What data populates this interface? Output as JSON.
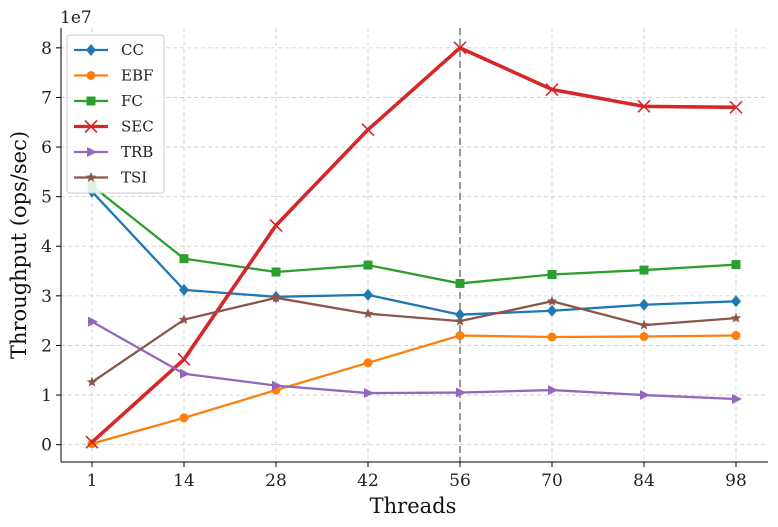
{
  "chart_data": {
    "type": "line",
    "xlabel": "Threads",
    "ylabel": "Throughput (ops/sec)",
    "y_scale_label": "1e7",
    "x": [
      1,
      14,
      28,
      42,
      56,
      70,
      84,
      98
    ],
    "x_tick_labels": [
      "1",
      "14",
      "28",
      "42",
      "56",
      "70",
      "84",
      "98"
    ],
    "y_ticks": [
      0,
      1,
      2,
      3,
      4,
      5,
      6,
      7,
      8
    ],
    "y_tick_labels": [
      "0",
      "1",
      "2",
      "3",
      "4",
      "5",
      "6",
      "7",
      "8"
    ],
    "ylim": [
      -0.35,
      8.4
    ],
    "grid": true,
    "vertical_marker_x": 56,
    "legend_position": "top-left",
    "series": [
      {
        "name": "CC",
        "color": "#1f77b4",
        "marker": "diamond",
        "values": [
          5.1,
          3.12,
          2.98,
          3.02,
          2.62,
          2.7,
          2.82,
          2.89
        ]
      },
      {
        "name": "EBF",
        "color": "#ff7f0e",
        "marker": "circle",
        "values": [
          0.02,
          0.54,
          1.1,
          1.65,
          2.2,
          2.17,
          2.18,
          2.2
        ]
      },
      {
        "name": "FC",
        "color": "#2ca02c",
        "marker": "square",
        "values": [
          5.22,
          3.75,
          3.48,
          3.62,
          3.25,
          3.43,
          3.52,
          3.63
        ]
      },
      {
        "name": "SEC",
        "color": "#d62728",
        "marker": "x",
        "values": [
          0.05,
          1.72,
          4.42,
          6.35,
          8.0,
          7.16,
          6.82,
          6.8
        ]
      },
      {
        "name": "TRB",
        "color": "#9467bd",
        "marker": "triangle",
        "values": [
          2.48,
          1.43,
          1.19,
          1.04,
          1.05,
          1.1,
          1.0,
          0.92
        ]
      },
      {
        "name": "TSI",
        "color": "#8c564b",
        "marker": "star",
        "values": [
          1.26,
          2.52,
          2.96,
          2.64,
          2.49,
          2.89,
          2.41,
          2.55
        ]
      }
    ]
  }
}
